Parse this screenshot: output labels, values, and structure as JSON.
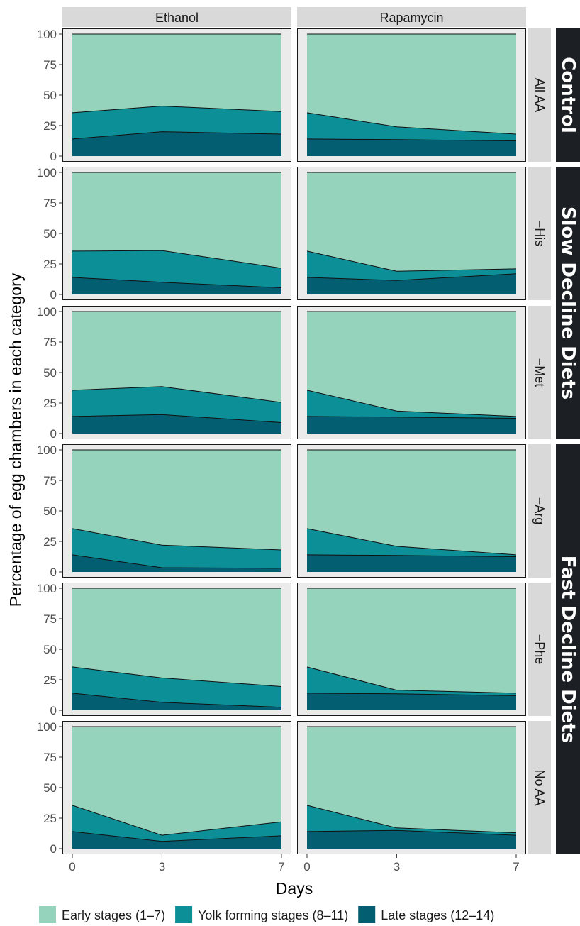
{
  "chart_data": {
    "type": "area",
    "subtype": "stacked-100-percent facet grid",
    "xlabel": "Days",
    "ylabel": "Percentage of egg chambers in each category",
    "x": [
      0,
      3,
      7
    ],
    "x_ticks": [
      "0",
      "3",
      "7"
    ],
    "ylim": [
      0,
      100
    ],
    "y_ticks": [
      "0",
      "25",
      "50",
      "75",
      "100"
    ],
    "grid": false,
    "legend_position": "bottom",
    "columns": [
      "Ethanol",
      "Rapamycin"
    ],
    "rows": [
      "All AA",
      "−His",
      "−Met",
      "−Arg",
      "−Phe",
      "No AA"
    ],
    "row_groups": [
      {
        "label": "Control",
        "rows": [
          0
        ]
      },
      {
        "label": "Slow Decline Diets",
        "rows": [
          1,
          2
        ]
      },
      {
        "label": "Fast Decline Diets",
        "rows": [
          3,
          4,
          5
        ]
      }
    ],
    "series": [
      {
        "name": "Early stages (1–7)",
        "color": "#96d3bd"
      },
      {
        "name": "Yolk forming stages (8–11)",
        "color": "#0d8f97"
      },
      {
        "name": "Late stages (12–14)",
        "color": "#045e72"
      }
    ],
    "panels": [
      {
        "row": "All AA",
        "column": "Ethanol",
        "late": [
          14,
          20,
          18
        ],
        "yolk": [
          21.5,
          21,
          18.5
        ],
        "early": [
          64.5,
          59,
          63.5
        ]
      },
      {
        "row": "All AA",
        "column": "Rapamycin",
        "late": [
          14,
          13.5,
          12.5
        ],
        "yolk": [
          21.5,
          10.5,
          5.5
        ],
        "early": [
          64.5,
          76,
          82
        ]
      },
      {
        "row": "−His",
        "column": "Ethanol",
        "late": [
          14,
          10,
          5.5
        ],
        "yolk": [
          21.5,
          26,
          16
        ],
        "early": [
          64.5,
          64,
          78.5
        ]
      },
      {
        "row": "−His",
        "column": "Rapamycin",
        "late": [
          14,
          11.5,
          17
        ],
        "yolk": [
          21.5,
          7.5,
          4
        ],
        "early": [
          64.5,
          81,
          79
        ]
      },
      {
        "row": "−Met",
        "column": "Ethanol",
        "late": [
          14,
          15.5,
          9
        ],
        "yolk": [
          21.5,
          23,
          16.5
        ],
        "early": [
          64.5,
          61.5,
          74.5
        ]
      },
      {
        "row": "−Met",
        "column": "Rapamycin",
        "late": [
          14,
          13.5,
          12.5
        ],
        "yolk": [
          21.5,
          5,
          1.5
        ],
        "early": [
          64.5,
          81.5,
          86
        ]
      },
      {
        "row": "−Arg",
        "column": "Ethanol",
        "late": [
          14,
          3.5,
          3
        ],
        "yolk": [
          21.5,
          18.5,
          15
        ],
        "early": [
          64.5,
          78,
          82
        ]
      },
      {
        "row": "−Arg",
        "column": "Rapamycin",
        "late": [
          14,
          13.5,
          12.5
        ],
        "yolk": [
          21.5,
          7.5,
          1.5
        ],
        "early": [
          64.5,
          79,
          86
        ]
      },
      {
        "row": "−Phe",
        "column": "Ethanol",
        "late": [
          14,
          6.5,
          2.5
        ],
        "yolk": [
          21.5,
          20,
          17
        ],
        "early": [
          64.5,
          73.5,
          80.5
        ]
      },
      {
        "row": "−Phe",
        "column": "Rapamycin",
        "late": [
          14,
          13.5,
          12
        ],
        "yolk": [
          21.5,
          3,
          2
        ],
        "early": [
          64.5,
          83.5,
          86
        ]
      },
      {
        "row": "No AA",
        "column": "Ethanol",
        "late": [
          14,
          6,
          10.5
        ],
        "yolk": [
          21.5,
          5,
          11.5
        ],
        "early": [
          64.5,
          89,
          78
        ]
      },
      {
        "row": "No AA",
        "column": "Rapamycin",
        "late": [
          14,
          15,
          11
        ],
        "yolk": [
          21.5,
          2,
          2
        ],
        "early": [
          64.5,
          83,
          87
        ]
      }
    ]
  },
  "colors": {
    "panel_background": "#ebebeb",
    "strip_background": "#d9d9d9",
    "group_label_background": "#1c2024",
    "outline": "#1a1a1a"
  }
}
